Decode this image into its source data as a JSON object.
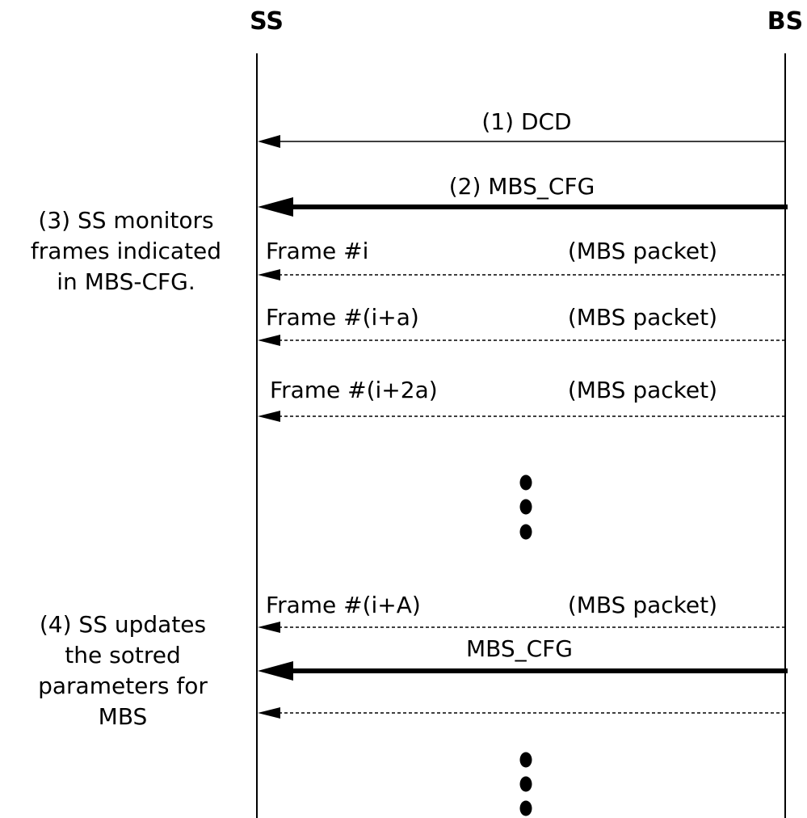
{
  "participants": {
    "left": "SS",
    "right": "BS"
  },
  "messages": [
    {
      "label": "(1) DCD",
      "style": "solid-thin"
    },
    {
      "label": "(2) MBS_CFG",
      "style": "solid-bold"
    },
    {
      "frame": "Frame #i",
      "packet": "(MBS packet)",
      "style": "dashed"
    },
    {
      "frame": "Frame #(i+a)",
      "packet": "(MBS packet)",
      "style": "dashed"
    },
    {
      "frame": "Frame #(i+2a)",
      "packet": "(MBS packet)",
      "style": "dashed"
    },
    {
      "frame": "Frame #(i+A)",
      "packet": "(MBS packet)",
      "style": "dashed"
    },
    {
      "label": "MBS_CFG",
      "style": "solid-bold"
    },
    {
      "label": "",
      "style": "dashed"
    }
  ],
  "notes": [
    {
      "lines": [
        "(3) SS monitors",
        "frames indicated",
        "in MBS-CFG."
      ]
    },
    {
      "lines": [
        "(4) SS updates",
        "the sotred",
        "parameters for",
        "MBS"
      ]
    }
  ]
}
